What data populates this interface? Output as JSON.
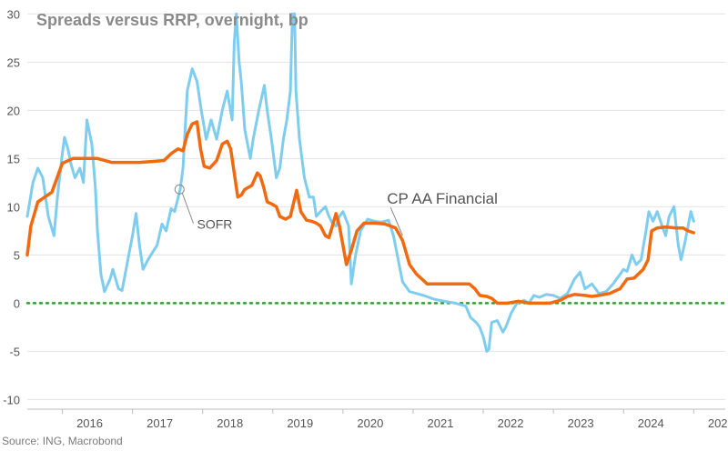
{
  "chart_data": {
    "type": "line",
    "title": "Spreads versus RRP, overnight, bp",
    "source": "Source: ING, Macrobond",
    "ylim": [
      -11,
      30.5
    ],
    "xlim": [
      2015.5,
      2025.45
    ],
    "yticks": [
      -10,
      -5,
      0,
      5,
      10,
      15,
      20,
      25,
      30
    ],
    "xticks": [
      {
        "label": "2016",
        "x": 2016.0
      },
      {
        "label": "2017",
        "x": 2017.0
      },
      {
        "label": "2018",
        "x": 2018.0
      },
      {
        "label": "2019",
        "x": 2019.0
      },
      {
        "label": "2020",
        "x": 2020.0
      },
      {
        "label": "2021",
        "x": 2021.0
      },
      {
        "label": "2022",
        "x": 2022.0
      },
      {
        "label": "2023",
        "x": 2023.0
      },
      {
        "label": "2024",
        "x": 2024.0
      },
      {
        "label": "2025",
        "x": 2025.0
      }
    ],
    "zero_line": {
      "y": 0,
      "style": "dotted",
      "color": "#2ca02c"
    },
    "annotations": [
      {
        "text": "SOFR",
        "x": 2017.92,
        "y": 7.7,
        "marker_x": 2017.67,
        "marker_y": 11.8
      },
      {
        "text": "CP AA Financial",
        "x": 2020.55,
        "y": 10.3,
        "anchor_x": 2020.85,
        "anchor_y": 7.0
      }
    ],
    "series": [
      {
        "name": "SOFR",
        "color": "#7fcdee",
        "points": [
          [
            2015.5,
            9
          ],
          [
            2015.58,
            12.5
          ],
          [
            2015.65,
            14
          ],
          [
            2015.72,
            13
          ],
          [
            2015.8,
            9
          ],
          [
            2015.88,
            7
          ],
          [
            2015.93,
            11
          ],
          [
            2016.0,
            15.5
          ],
          [
            2016.03,
            17.2
          ],
          [
            2016.08,
            16
          ],
          [
            2016.12,
            14.5
          ],
          [
            2016.18,
            13
          ],
          [
            2016.25,
            14
          ],
          [
            2016.3,
            12.5
          ],
          [
            2016.35,
            19
          ],
          [
            2016.42,
            16.5
          ],
          [
            2016.47,
            12
          ],
          [
            2016.5,
            7.5
          ],
          [
            2016.55,
            3
          ],
          [
            2016.6,
            1.2
          ],
          [
            2016.68,
            2.5
          ],
          [
            2016.72,
            3.5
          ],
          [
            2016.8,
            1.5
          ],
          [
            2016.85,
            1.3
          ],
          [
            2016.92,
            4
          ],
          [
            2017.0,
            7
          ],
          [
            2017.05,
            9.3
          ],
          [
            2017.1,
            6
          ],
          [
            2017.15,
            3.5
          ],
          [
            2017.22,
            4.5
          ],
          [
            2017.28,
            5.2
          ],
          [
            2017.35,
            6
          ],
          [
            2017.42,
            8.2
          ],
          [
            2017.48,
            7.5
          ],
          [
            2017.55,
            9.8
          ],
          [
            2017.6,
            9.5
          ],
          [
            2017.68,
            11.8
          ],
          [
            2017.72,
            14
          ],
          [
            2017.78,
            22
          ],
          [
            2017.85,
            24.3
          ],
          [
            2017.92,
            23
          ],
          [
            2017.98,
            20
          ],
          [
            2018.05,
            17
          ],
          [
            2018.12,
            19
          ],
          [
            2018.2,
            17
          ],
          [
            2018.28,
            20
          ],
          [
            2018.35,
            22
          ],
          [
            2018.42,
            19
          ],
          [
            2018.45,
            27
          ],
          [
            2018.48,
            30
          ],
          [
            2018.52,
            25
          ],
          [
            2018.55,
            23
          ],
          [
            2018.6,
            18
          ],
          [
            2018.68,
            15
          ],
          [
            2018.72,
            17
          ],
          [
            2018.8,
            20
          ],
          [
            2018.88,
            22.6
          ],
          [
            2018.92,
            20
          ],
          [
            2018.98,
            17
          ],
          [
            2019.05,
            13
          ],
          [
            2019.1,
            14
          ],
          [
            2019.15,
            17
          ],
          [
            2019.2,
            19
          ],
          [
            2019.25,
            22
          ],
          [
            2019.28,
            30
          ],
          [
            2019.31,
            30
          ],
          [
            2019.33,
            22
          ],
          [
            2019.38,
            17
          ],
          [
            2019.45,
            13
          ],
          [
            2019.52,
            11
          ],
          [
            2019.58,
            11
          ],
          [
            2019.62,
            9
          ],
          [
            2019.68,
            9.5
          ],
          [
            2019.75,
            10
          ],
          [
            2019.8,
            9
          ],
          [
            2019.85,
            8.3
          ],
          [
            2019.9,
            8
          ],
          [
            2019.95,
            9
          ],
          [
            2020.0,
            9.5
          ],
          [
            2020.08,
            8
          ],
          [
            2020.12,
            2
          ],
          [
            2020.18,
            5
          ],
          [
            2020.25,
            7.5
          ],
          [
            2020.35,
            8.7
          ],
          [
            2020.45,
            8.5
          ],
          [
            2020.55,
            8.4
          ],
          [
            2020.65,
            8.6
          ],
          [
            2020.72,
            7
          ],
          [
            2020.8,
            4
          ],
          [
            2020.85,
            2.2
          ],
          [
            2020.95,
            1.2
          ],
          [
            2021.05,
            1
          ],
          [
            2021.15,
            0.8
          ],
          [
            2021.3,
            0.4
          ],
          [
            2021.45,
            0.2
          ],
          [
            2021.6,
            0
          ],
          [
            2021.75,
            -0.3
          ],
          [
            2021.82,
            -1.5
          ],
          [
            2021.9,
            -2
          ],
          [
            2021.95,
            -2.5
          ],
          [
            2022.0,
            -3.5
          ],
          [
            2022.05,
            -5
          ],
          [
            2022.08,
            -4.8
          ],
          [
            2022.12,
            -2
          ],
          [
            2022.2,
            -1.8
          ],
          [
            2022.28,
            -3
          ],
          [
            2022.32,
            -2.5
          ],
          [
            2022.4,
            -1
          ],
          [
            2022.48,
            0
          ],
          [
            2022.58,
            0.3
          ],
          [
            2022.65,
            0
          ],
          [
            2022.72,
            0.8
          ],
          [
            2022.8,
            0.6
          ],
          [
            2022.9,
            0.9
          ],
          [
            2023.0,
            0.8
          ],
          [
            2023.1,
            0.5
          ],
          [
            2023.2,
            1
          ],
          [
            2023.3,
            2.5
          ],
          [
            2023.38,
            3.2
          ],
          [
            2023.45,
            1.5
          ],
          [
            2023.55,
            2
          ],
          [
            2023.65,
            1
          ],
          [
            2023.75,
            1.2
          ],
          [
            2023.85,
            2
          ],
          [
            2023.95,
            3
          ],
          [
            2024.0,
            3.5
          ],
          [
            2024.05,
            3.3
          ],
          [
            2024.12,
            5
          ],
          [
            2024.18,
            4
          ],
          [
            2024.25,
            4.5
          ],
          [
            2024.32,
            7.5
          ],
          [
            2024.36,
            9.5
          ],
          [
            2024.42,
            8.5
          ],
          [
            2024.48,
            9.5
          ],
          [
            2024.55,
            8
          ],
          [
            2024.6,
            7
          ],
          [
            2024.65,
            9
          ],
          [
            2024.72,
            10
          ],
          [
            2024.78,
            6
          ],
          [
            2024.82,
            4.5
          ],
          [
            2024.88,
            6.5
          ],
          [
            2024.92,
            8
          ],
          [
            2024.96,
            9.5
          ],
          [
            2025.0,
            8.5
          ]
        ]
      },
      {
        "name": "CP AA Financial",
        "color": "#f26a10",
        "points": [
          [
            2015.5,
            5
          ],
          [
            2015.55,
            8
          ],
          [
            2015.65,
            10.5
          ],
          [
            2015.75,
            11
          ],
          [
            2015.85,
            11.5
          ],
          [
            2016.0,
            14.5
          ],
          [
            2016.15,
            15
          ],
          [
            2016.3,
            15
          ],
          [
            2016.5,
            15
          ],
          [
            2016.7,
            14.6
          ],
          [
            2016.9,
            14.6
          ],
          [
            2017.1,
            14.6
          ],
          [
            2017.3,
            14.7
          ],
          [
            2017.45,
            14.8
          ],
          [
            2017.55,
            15.5
          ],
          [
            2017.65,
            16
          ],
          [
            2017.72,
            15.8
          ],
          [
            2017.78,
            17.5
          ],
          [
            2017.85,
            18.6
          ],
          [
            2017.92,
            18.8
          ],
          [
            2017.97,
            16
          ],
          [
            2018.02,
            14.2
          ],
          [
            2018.1,
            14
          ],
          [
            2018.2,
            14.8
          ],
          [
            2018.28,
            16.5
          ],
          [
            2018.35,
            16.8
          ],
          [
            2018.4,
            16
          ],
          [
            2018.45,
            13.5
          ],
          [
            2018.5,
            11
          ],
          [
            2018.55,
            11.2
          ],
          [
            2018.6,
            11.8
          ],
          [
            2018.7,
            12.2
          ],
          [
            2018.78,
            13.5
          ],
          [
            2018.82,
            13.2
          ],
          [
            2018.87,
            12
          ],
          [
            2018.92,
            10.5
          ],
          [
            2018.98,
            10.3
          ],
          [
            2019.05,
            10
          ],
          [
            2019.1,
            9
          ],
          [
            2019.18,
            8.7
          ],
          [
            2019.25,
            9
          ],
          [
            2019.3,
            10.5
          ],
          [
            2019.34,
            11.7
          ],
          [
            2019.4,
            9.5
          ],
          [
            2019.48,
            8.6
          ],
          [
            2019.55,
            8.5
          ],
          [
            2019.62,
            8.3
          ],
          [
            2019.68,
            8
          ],
          [
            2019.75,
            7
          ],
          [
            2019.8,
            6.8
          ],
          [
            2019.85,
            8
          ],
          [
            2019.9,
            9.3
          ],
          [
            2019.95,
            8
          ],
          [
            2020.0,
            6
          ],
          [
            2020.05,
            4
          ],
          [
            2020.12,
            5.5
          ],
          [
            2020.2,
            7.5
          ],
          [
            2020.3,
            8.3
          ],
          [
            2020.45,
            8.3
          ],
          [
            2020.6,
            8.2
          ],
          [
            2020.75,
            7.8
          ],
          [
            2020.85,
            6.5
          ],
          [
            2020.95,
            4
          ],
          [
            2021.05,
            3
          ],
          [
            2021.2,
            2
          ],
          [
            2021.35,
            2
          ],
          [
            2021.5,
            2
          ],
          [
            2021.7,
            2
          ],
          [
            2021.8,
            2
          ],
          [
            2021.88,
            1.5
          ],
          [
            2021.95,
            0.8
          ],
          [
            2022.05,
            0.7
          ],
          [
            2022.12,
            0.5
          ],
          [
            2022.2,
            0
          ],
          [
            2022.35,
            0
          ],
          [
            2022.5,
            0.2
          ],
          [
            2022.65,
            0
          ],
          [
            2022.8,
            0
          ],
          [
            2022.95,
            0
          ],
          [
            2023.1,
            0.3
          ],
          [
            2023.2,
            0.7
          ],
          [
            2023.3,
            0.9
          ],
          [
            2023.45,
            0.8
          ],
          [
            2023.55,
            0.7
          ],
          [
            2023.65,
            0.8
          ],
          [
            2023.8,
            1
          ],
          [
            2023.95,
            1.5
          ],
          [
            2024.05,
            2.5
          ],
          [
            2024.15,
            2.6
          ],
          [
            2024.28,
            3.5
          ],
          [
            2024.35,
            4.5
          ],
          [
            2024.4,
            7.5
          ],
          [
            2024.48,
            7.8
          ],
          [
            2024.6,
            7.9
          ],
          [
            2024.75,
            7.8
          ],
          [
            2024.85,
            7.8
          ],
          [
            2024.92,
            7.5
          ],
          [
            2025.0,
            7.3
          ]
        ]
      }
    ]
  }
}
